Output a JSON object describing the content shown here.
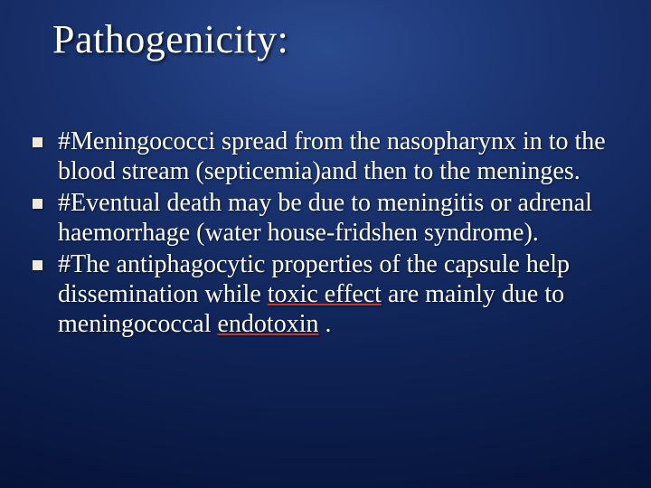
{
  "slide": {
    "title": "Pathogenicity:",
    "title_fontsize": 44,
    "title_color": "#ffffff",
    "bullet_fontsize": 28,
    "bullet_color": "#ffffff",
    "bullet_marker_color": "#eceadf",
    "underline_color": "#c0392b",
    "background_gradient": {
      "type": "radial",
      "stops": [
        "#2a4a8f",
        "#1a3370",
        "#0f2356",
        "#081740",
        "#030a25"
      ]
    },
    "bullets": [
      {
        "prefix": "#Meningococci  spread from the nasopharynx in to the blood stream  (septicemia)and then to the meninges.",
        "underlined": [],
        "full": "#Meningococci  spread from the nasopharynx in to the blood stream  (septicemia)and then to the meninges."
      },
      {
        "prefix": " #Eventual death may be due to meningitis or adrenal haemorrhage (water house-fridshen syndrome).",
        "underlined": [],
        "full": " #Eventual death may be due to meningitis or adrenal haemorrhage (water house-fridshen syndrome)."
      },
      {
        "segments": [
          {
            "text": "#The antiphagocytic properties  of the capsule help dissemination while ",
            "u": false
          },
          {
            "text": "toxic effect",
            "u": true
          },
          {
            "text": " are mainly due to meningococcal ",
            "u": false
          },
          {
            "text": "endotoxin",
            "u": true
          },
          {
            "text": " .",
            "u": false
          }
        ],
        "full": "#The antiphagocytic properties  of the capsule help dissemination while toxic effect are mainly due to meningococcal endotoxin ."
      }
    ]
  }
}
